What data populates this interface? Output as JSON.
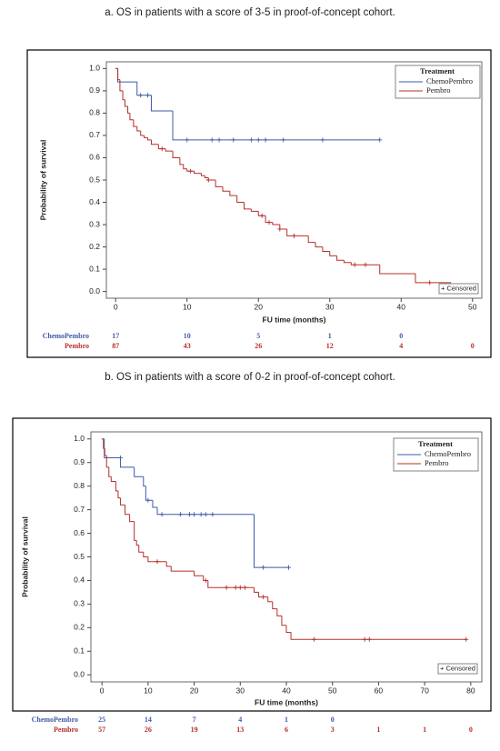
{
  "chart_data": [
    {
      "type": "step",
      "title": "a. OS in patients with a score of 3-5 in proof-of-concept cohort.",
      "xlabel": "FU time (months)",
      "ylabel": "Probability of survival",
      "xlim": [
        -1.3,
        51.3
      ],
      "ylim": [
        -0.03,
        1.03
      ],
      "xticks": [
        0,
        10,
        20,
        30,
        40,
        50
      ],
      "yticks": [
        {
          "value": 0,
          "label": "0.0"
        },
        0.1,
        0.2,
        0.3,
        0.4,
        0.5,
        0.6,
        0.7,
        0.8,
        0.9,
        {
          "value": 1,
          "label": "1.0"
        }
      ],
      "legend_title": "Treatment",
      "censored_label": "+ Censored",
      "series": [
        {
          "name": "ChemoPembro",
          "color": "#3f5aa8",
          "x": [
            0,
            0.3,
            3,
            5,
            8,
            37
          ],
          "values": [
            1,
            0.94,
            0.88,
            0.81,
            0.68,
            0.68
          ],
          "censored": {
            "x": [
              3.5,
              4.5,
              10,
              13.5,
              14.5,
              16.5,
              19,
              20,
              21,
              23.5,
              29,
              37
            ],
            "values": [
              0.88,
              0.88,
              0.68,
              0.68,
              0.68,
              0.68,
              0.68,
              0.68,
              0.68,
              0.68,
              0.68,
              0.68
            ]
          },
          "at_risk": [
            17,
            10,
            5,
            1,
            0
          ]
        },
        {
          "name": "Pembro",
          "color": "#b3302b",
          "x": [
            0,
            0.3,
            0.6,
            1,
            1.3,
            1.7,
            2,
            2.5,
            3,
            3.5,
            4,
            4.5,
            5,
            6,
            7,
            8,
            9,
            9.5,
            10,
            11,
            12,
            12.5,
            13,
            14,
            15,
            16,
            17,
            18,
            19,
            20,
            21,
            22,
            23,
            24,
            27,
            28,
            29,
            30,
            31,
            32,
            33,
            37,
            41.5,
            42,
            47
          ],
          "values": [
            1,
            0.95,
            0.9,
            0.86,
            0.83,
            0.8,
            0.77,
            0.74,
            0.72,
            0.7,
            0.69,
            0.68,
            0.66,
            0.64,
            0.63,
            0.6,
            0.57,
            0.55,
            0.54,
            0.53,
            0.52,
            0.51,
            0.5,
            0.47,
            0.45,
            0.43,
            0.4,
            0.37,
            0.36,
            0.34,
            0.31,
            0.3,
            0.28,
            0.25,
            0.22,
            0.2,
            0.18,
            0.16,
            0.14,
            0.13,
            0.12,
            0.08,
            0.08,
            0.04,
            0.04
          ],
          "censored": {
            "x": [
              6.5,
              10.5,
              13,
              20.5,
              21.5,
              23,
              25,
              33.5,
              35,
              44
            ],
            "values": [
              0.64,
              0.54,
              0.5,
              0.34,
              0.31,
              0.28,
              0.25,
              0.12,
              0.12,
              0.04
            ]
          },
          "at_risk": [
            87,
            43,
            26,
            12,
            4,
            0
          ]
        }
      ]
    },
    {
      "type": "step",
      "title": "b. OS in patients with a score of 0-2 in proof-of-concept cohort.",
      "xlabel": "FU time (months)",
      "ylabel": "Probability of survival",
      "xlim": [
        -2.4,
        82.4
      ],
      "ylim": [
        -0.03,
        1.03
      ],
      "xticks": [
        0,
        10,
        20,
        30,
        40,
        50,
        60,
        70,
        80
      ],
      "yticks": [
        {
          "value": 0,
          "label": "0.0"
        },
        0.1,
        0.2,
        0.3,
        0.4,
        0.5,
        0.6,
        0.7,
        0.8,
        0.9,
        {
          "value": 1,
          "label": "1.0"
        }
      ],
      "legend_title": "Treatment",
      "censored_label": "+ Censored",
      "series": [
        {
          "name": "ChemoPembro",
          "color": "#3f5aa8",
          "x": [
            0,
            0.5,
            4,
            7,
            9,
            9.5,
            11,
            12,
            33,
            40.5
          ],
          "values": [
            1,
            0.92,
            0.88,
            0.84,
            0.8,
            0.74,
            0.71,
            0.68,
            0.455,
            0.455
          ],
          "censored": {
            "x": [
              4,
              10,
              13,
              17,
              19,
              20,
              21.5,
              22.5,
              24,
              35,
              40.5
            ],
            "values": [
              0.92,
              0.74,
              0.68,
              0.68,
              0.68,
              0.68,
              0.68,
              0.68,
              0.68,
              0.455,
              0.455
            ]
          },
          "at_risk": [
            25,
            14,
            7,
            4,
            1,
            0
          ]
        },
        {
          "name": "Pembro",
          "color": "#b3302b",
          "x": [
            0,
            0.3,
            0.6,
            1,
            1.5,
            2,
            3,
            3.5,
            4,
            5,
            6,
            7,
            7.5,
            8,
            9,
            10,
            14,
            15,
            20,
            22,
            23,
            33,
            34,
            36,
            37,
            38,
            39,
            40,
            41,
            79
          ],
          "values": [
            1,
            0.96,
            0.93,
            0.88,
            0.84,
            0.82,
            0.78,
            0.75,
            0.72,
            0.68,
            0.65,
            0.57,
            0.55,
            0.52,
            0.5,
            0.48,
            0.46,
            0.44,
            0.42,
            0.4,
            0.37,
            0.35,
            0.33,
            0.31,
            0.28,
            0.25,
            0.21,
            0.18,
            0.15,
            0.15
          ],
          "censored": {
            "x": [
              12,
              22.5,
              27,
              29,
              30,
              31,
              35,
              46,
              57,
              58,
              79
            ],
            "values": [
              0.48,
              0.4,
              0.37,
              0.37,
              0.37,
              0.37,
              0.33,
              0.15,
              0.15,
              0.15,
              0.15
            ]
          },
          "at_risk": [
            57,
            26,
            19,
            13,
            6,
            3,
            1,
            1,
            0
          ]
        }
      ]
    }
  ]
}
